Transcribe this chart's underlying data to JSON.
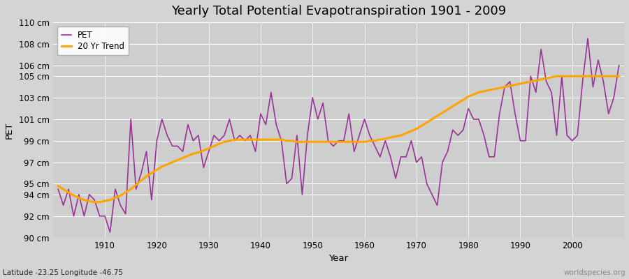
{
  "title": "Yearly Total Potential Evapotranspiration 1901 - 2009",
  "xlabel": "Year",
  "ylabel": "PET",
  "subtitle": "Latitude -23.25 Longitude -46.75",
  "watermark": "worldspecies.org",
  "pet_color": "#993399",
  "trend_color": "#FFA500",
  "background_color": "#D8D8D8",
  "plot_bg_color": "#D0D0D0",
  "ylim": [
    90,
    110
  ],
  "yticks": [
    90,
    92,
    94,
    95,
    97,
    99,
    101,
    103,
    105,
    106,
    108,
    110
  ],
  "years": [
    1901,
    1902,
    1903,
    1904,
    1905,
    1906,
    1907,
    1908,
    1909,
    1910,
    1911,
    1912,
    1913,
    1914,
    1915,
    1916,
    1917,
    1918,
    1919,
    1920,
    1921,
    1922,
    1923,
    1924,
    1925,
    1926,
    1927,
    1928,
    1929,
    1930,
    1931,
    1932,
    1933,
    1934,
    1935,
    1936,
    1937,
    1938,
    1939,
    1940,
    1941,
    1942,
    1943,
    1944,
    1945,
    1946,
    1947,
    1948,
    1949,
    1950,
    1951,
    1952,
    1953,
    1954,
    1955,
    1956,
    1957,
    1958,
    1959,
    1960,
    1961,
    1962,
    1963,
    1964,
    1965,
    1966,
    1967,
    1968,
    1969,
    1970,
    1971,
    1972,
    1973,
    1974,
    1975,
    1976,
    1977,
    1978,
    1979,
    1980,
    1981,
    1982,
    1983,
    1984,
    1985,
    1986,
    1987,
    1988,
    1989,
    1990,
    1991,
    1992,
    1993,
    1994,
    1995,
    1996,
    1997,
    1998,
    1999,
    2000,
    2001,
    2002,
    2003,
    2004,
    2005,
    2006,
    2007,
    2008,
    2009
  ],
  "pet_values": [
    94.5,
    93.0,
    94.5,
    92.0,
    94.0,
    92.0,
    94.0,
    93.5,
    92.0,
    92.0,
    90.5,
    94.5,
    93.0,
    92.2,
    101.0,
    94.5,
    96.0,
    98.0,
    93.5,
    99.0,
    101.0,
    99.5,
    98.5,
    98.5,
    98.0,
    100.5,
    99.0,
    99.5,
    96.5,
    98.0,
    99.5,
    99.0,
    99.5,
    101.0,
    99.0,
    99.5,
    99.0,
    99.5,
    98.0,
    101.5,
    100.5,
    103.5,
    100.5,
    99.0,
    95.0,
    95.5,
    99.5,
    94.0,
    99.5,
    103.0,
    101.0,
    102.5,
    99.0,
    98.5,
    99.0,
    99.0,
    101.5,
    98.0,
    99.5,
    101.0,
    99.5,
    98.5,
    97.5,
    99.0,
    97.5,
    95.5,
    97.5,
    97.5,
    99.0,
    97.0,
    97.5,
    95.0,
    94.0,
    93.0,
    97.0,
    98.0,
    100.0,
    99.5,
    100.0,
    102.0,
    101.0,
    101.0,
    99.5,
    97.5,
    97.5,
    101.5,
    104.0,
    104.5,
    101.5,
    99.0,
    99.0,
    105.0,
    103.5,
    107.5,
    104.5,
    103.5,
    99.5,
    105.0,
    99.5,
    99.0,
    99.5,
    104.5,
    108.5,
    104.0,
    106.5,
    104.5,
    101.5,
    103.0,
    106.0
  ],
  "trend_values": [
    94.8,
    94.5,
    94.2,
    93.9,
    93.7,
    93.5,
    93.4,
    93.3,
    93.3,
    93.4,
    93.5,
    93.7,
    93.9,
    94.2,
    94.5,
    94.9,
    95.3,
    95.7,
    96.0,
    96.3,
    96.6,
    96.8,
    97.0,
    97.2,
    97.4,
    97.6,
    97.8,
    97.9,
    98.1,
    98.3,
    98.5,
    98.7,
    98.9,
    99.0,
    99.1,
    99.1,
    99.1,
    99.1,
    99.1,
    99.1,
    99.1,
    99.1,
    99.1,
    99.1,
    99.0,
    99.0,
    98.9,
    98.9,
    98.9,
    98.9,
    98.9,
    98.9,
    98.9,
    98.9,
    98.9,
    98.9,
    98.9,
    98.9,
    98.9,
    98.9,
    99.0,
    99.0,
    99.1,
    99.2,
    99.3,
    99.4,
    99.5,
    99.7,
    99.9,
    100.1,
    100.4,
    100.7,
    101.0,
    101.3,
    101.6,
    101.9,
    102.2,
    102.5,
    102.8,
    103.1,
    103.3,
    103.5,
    103.6,
    103.7,
    103.8,
    103.9,
    104.0,
    104.1,
    104.2,
    104.3,
    104.4,
    104.5,
    104.6,
    104.7,
    104.8,
    104.9,
    105.0,
    105.0,
    105.0,
    105.0,
    105.0,
    105.0,
    105.0,
    105.0,
    105.0,
    105.0,
    105.0,
    105.0,
    105.0
  ]
}
